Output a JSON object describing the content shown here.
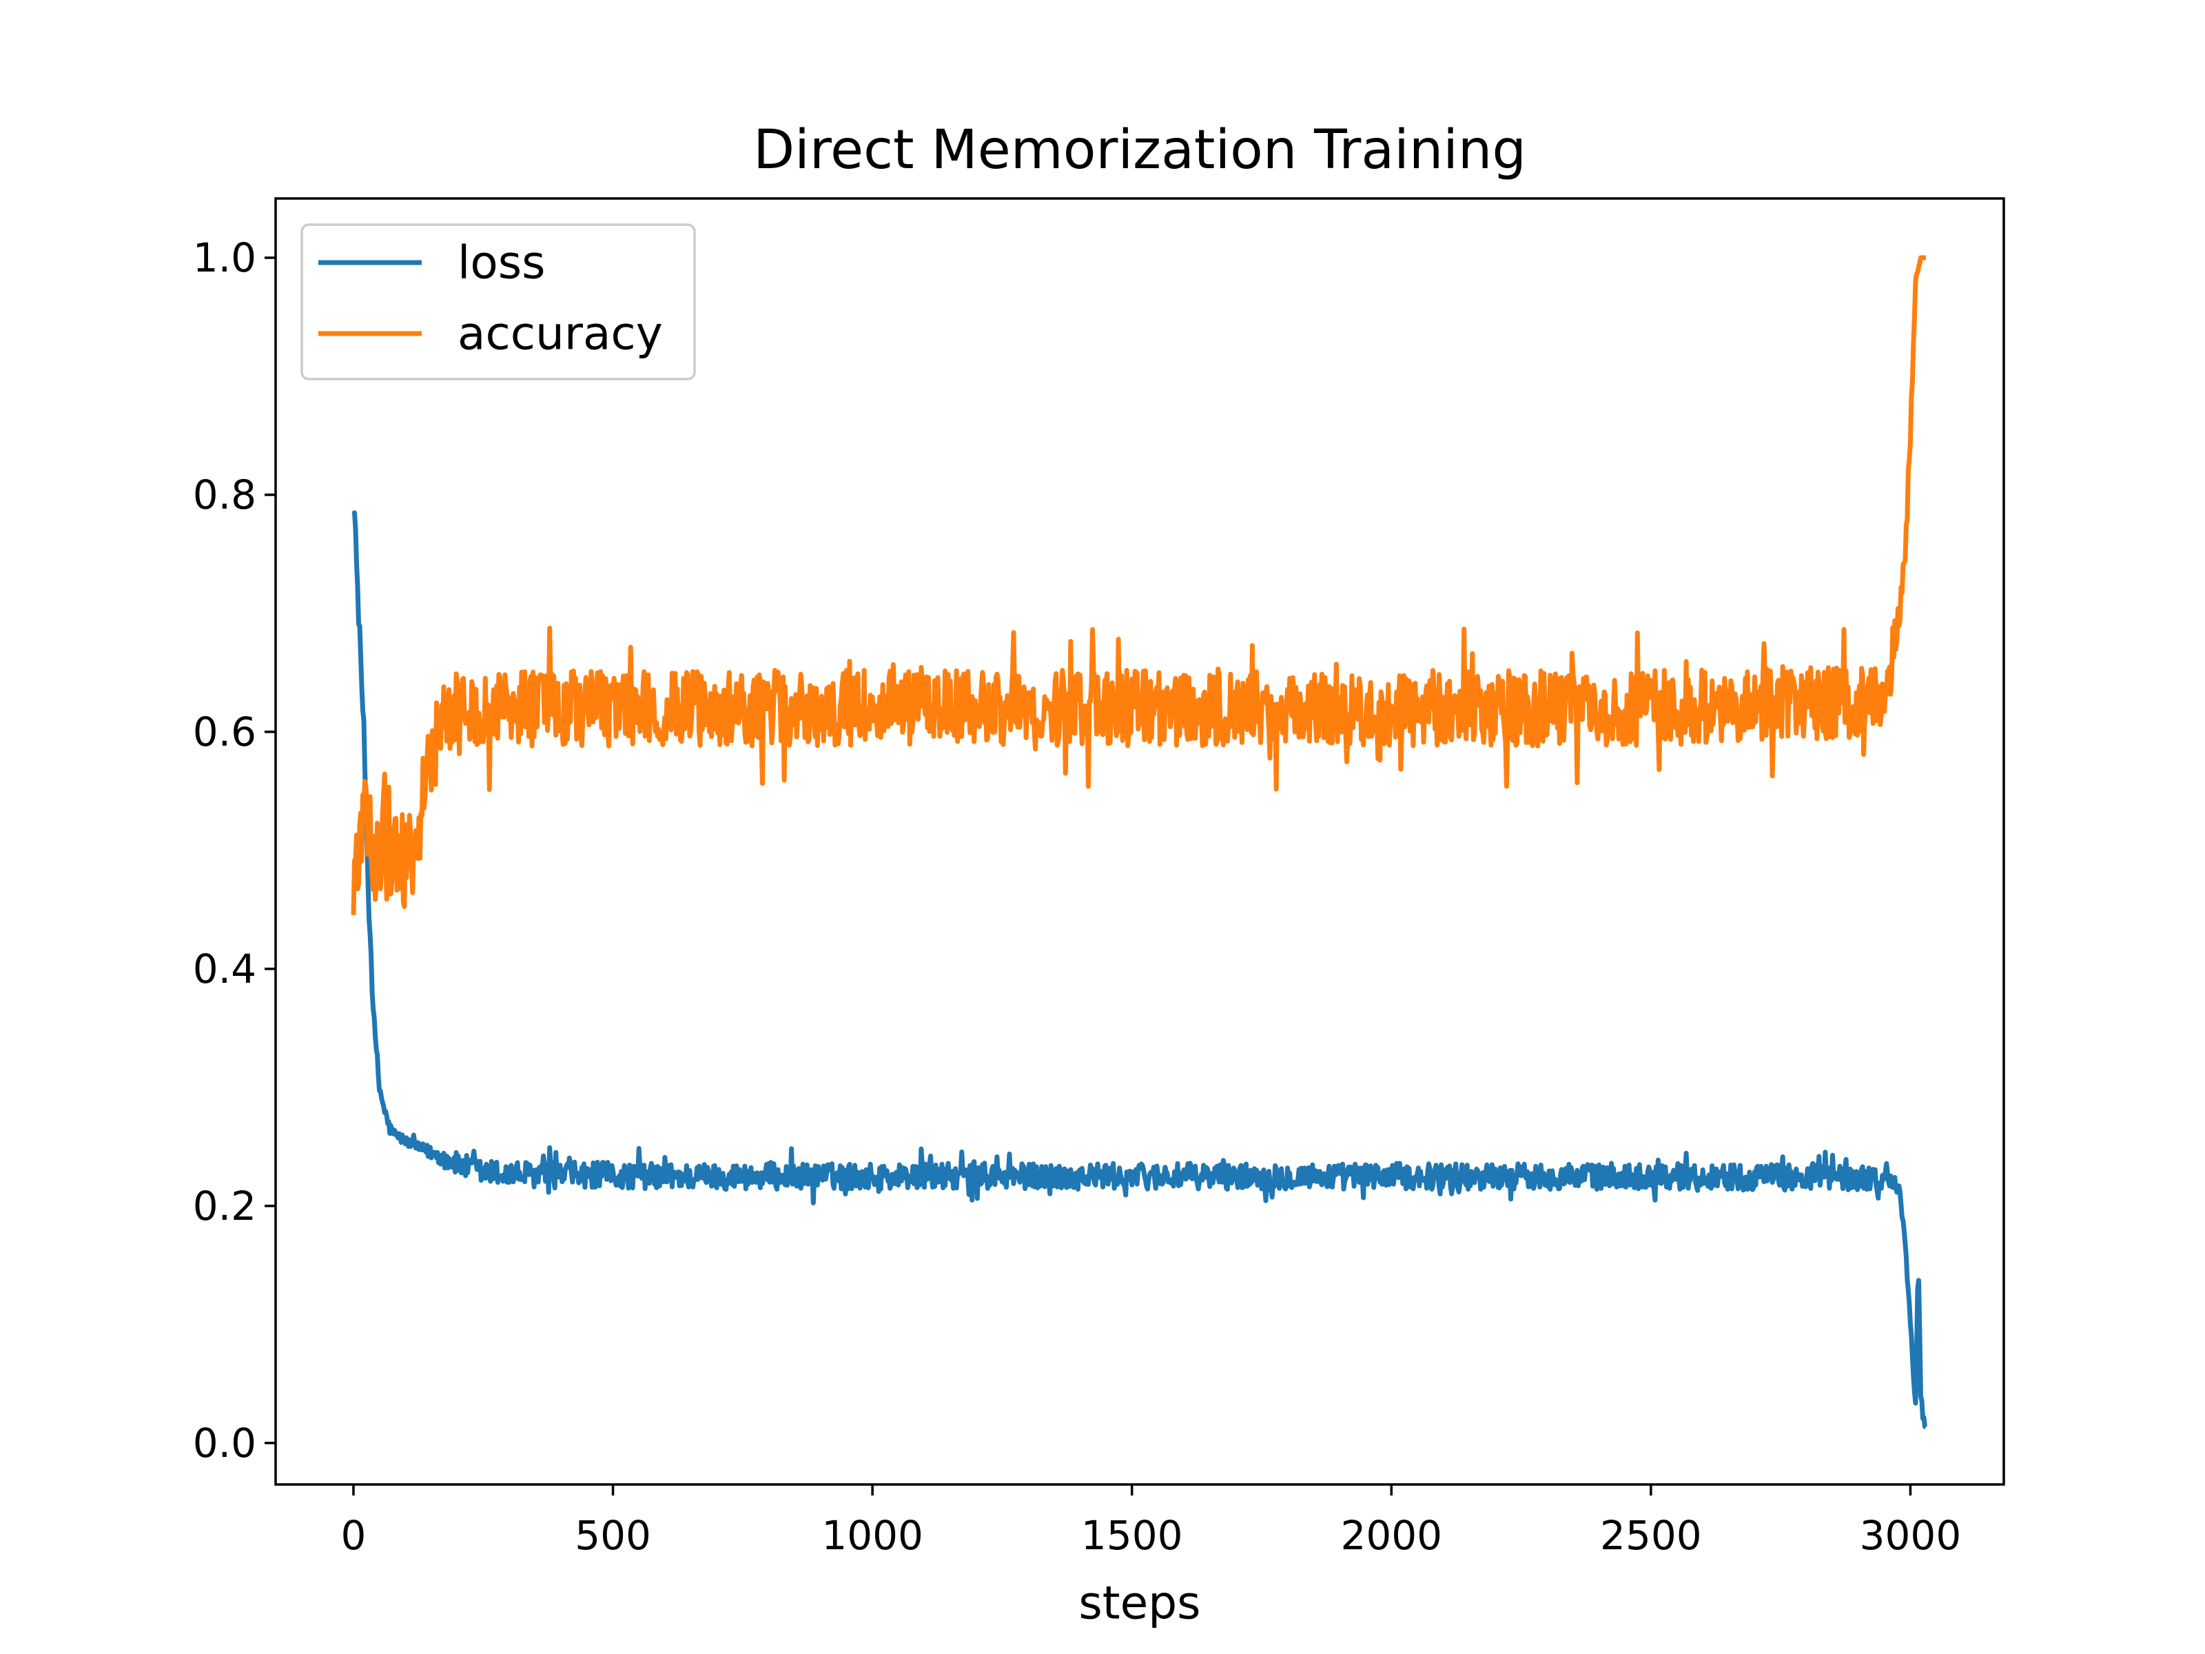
{
  "chart_data": {
    "type": "line",
    "title": "Direct Memorization Training",
    "xlabel": "steps",
    "ylabel": "",
    "xlim": [
      -150,
      3180
    ],
    "ylim": [
      -0.035,
      1.05
    ],
    "xticks": [
      0,
      500,
      1000,
      1500,
      2000,
      2500,
      3000
    ],
    "xtick_labels": [
      "0",
      "500",
      "1000",
      "1500",
      "2000",
      "2500",
      "3000"
    ],
    "yticks": [
      0.0,
      0.2,
      0.4,
      0.6,
      0.8,
      1.0
    ],
    "ytick_labels": [
      "0.0",
      "0.2",
      "0.4",
      "0.6",
      "0.8",
      "1.0"
    ],
    "grid": false,
    "legend_position": "upper left",
    "series": [
      {
        "name": "loss",
        "color": "#1f77b4",
        "x": [
          0,
          10,
          20,
          30,
          40,
          50,
          60,
          70,
          80,
          100,
          120,
          150,
          200,
          250,
          300,
          400,
          500,
          600,
          700,
          800,
          900,
          1000,
          1200,
          1400,
          1600,
          1800,
          2000,
          2200,
          2400,
          2600,
          2800,
          2900,
          2950,
          2970,
          2980,
          2990,
          3000,
          3010,
          3015,
          3020,
          3025,
          3030
        ],
        "y": [
          0.805,
          0.7,
          0.6,
          0.45,
          0.35,
          0.3,
          0.28,
          0.265,
          0.26,
          0.255,
          0.25,
          0.245,
          0.235,
          0.228,
          0.227,
          0.226,
          0.226,
          0.225,
          0.225,
          0.225,
          0.225,
          0.225,
          0.225,
          0.225,
          0.225,
          0.225,
          0.225,
          0.225,
          0.225,
          0.225,
          0.224,
          0.224,
          0.222,
          0.22,
          0.21,
          0.17,
          0.1,
          0.03,
          0.16,
          0.04,
          0.02,
          0.015
        ],
        "noise": [
          0.01,
          0.01,
          0.01,
          0.01,
          0.01,
          0.008,
          0.006,
          0.005,
          0.005,
          0.004,
          0.004,
          0.006,
          0.01,
          0.011,
          0.011,
          0.011,
          0.011,
          0.011,
          0.011,
          0.011,
          0.011,
          0.011,
          0.011,
          0.011,
          0.011,
          0.011,
          0.011,
          0.011,
          0.011,
          0.011,
          0.011,
          0.011,
          0.01,
          0.005,
          0.005,
          0.005,
          0.005,
          0.005,
          0.005,
          0.005,
          0.005,
          0.003
        ]
      },
      {
        "name": "accuracy",
        "color": "#ff7f0e",
        "x": [
          0,
          10,
          20,
          40,
          60,
          80,
          100,
          120,
          140,
          160,
          200,
          300,
          500,
          800,
          1000,
          1500,
          2000,
          2500,
          2900,
          2950,
          2960,
          2970,
          2980,
          2990,
          3000,
          3010,
          3020,
          3030
        ],
        "y": [
          0.47,
          0.5,
          0.52,
          0.5,
          0.52,
          0.5,
          0.49,
          0.5,
          0.56,
          0.6,
          0.62,
          0.62,
          0.62,
          0.62,
          0.62,
          0.62,
          0.62,
          0.62,
          0.625,
          0.63,
          0.65,
          0.68,
          0.7,
          0.75,
          0.85,
          0.98,
          1.0,
          1.0
        ],
        "noise": [
          0.03,
          0.035,
          0.04,
          0.045,
          0.045,
          0.045,
          0.045,
          0.04,
          0.035,
          0.032,
          0.032,
          0.032,
          0.032,
          0.032,
          0.032,
          0.032,
          0.032,
          0.032,
          0.03,
          0.025,
          0.02,
          0.02,
          0.02,
          0.02,
          0.01,
          0.005,
          0.0,
          0.0
        ]
      }
    ]
  }
}
